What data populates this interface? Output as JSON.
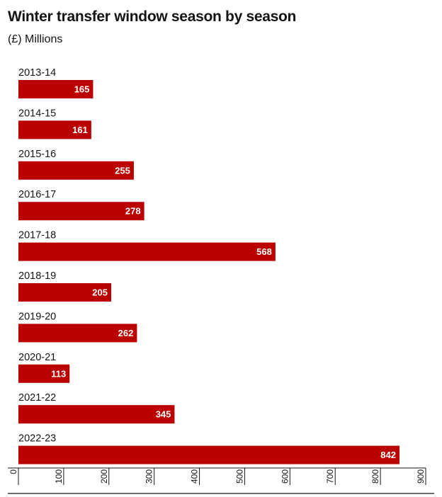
{
  "header": {
    "title": "Winter transfer window season by season",
    "subtitle": "(£) Millions"
  },
  "colors": {
    "bar": "#bb0000",
    "axis": "#141414",
    "bar_label": "#ffffff"
  },
  "chart_data": {
    "type": "bar",
    "orientation": "horizontal",
    "title": "Winter transfer window season by season",
    "subtitle": "(£) Millions",
    "xlabel": "",
    "ylabel": "",
    "categories": [
      "2013-14",
      "2014-15",
      "2015-16",
      "2016-17",
      "2017-18",
      "2018-19",
      "2019-20",
      "2020-21",
      "2021-22",
      "2022-23"
    ],
    "values": [
      165,
      161,
      255,
      278,
      568,
      205,
      262,
      113,
      345,
      842
    ],
    "value_labels": [
      "165",
      "161",
      "255",
      "278",
      "568",
      "205",
      "262",
      "113",
      "345",
      "842"
    ],
    "xlim": [
      0,
      900
    ],
    "ticks": [
      0,
      100,
      200,
      300,
      400,
      500,
      600,
      700,
      800,
      900
    ],
    "tick_labels": [
      "0",
      "100",
      "200",
      "300",
      "400",
      "500",
      "600",
      "700",
      "800",
      "900"
    ],
    "grid": false
  }
}
